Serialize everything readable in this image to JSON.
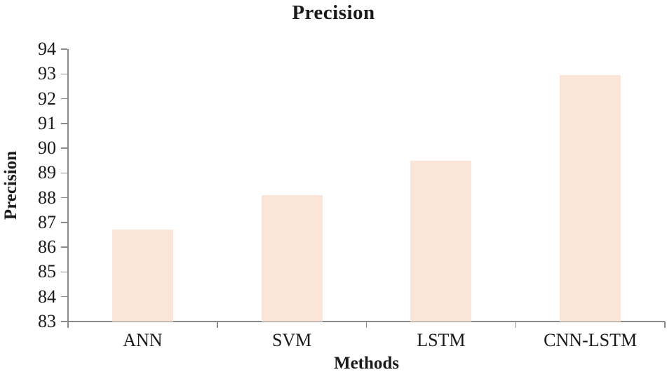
{
  "colors": {
    "bar_fill": "#FAE5D8",
    "axis": "#8A8A8A",
    "text": "#1A1A1A",
    "background": "#FFFFFF"
  },
  "chart_data": {
    "type": "bar",
    "title": "Precision",
    "xlabel": "Methods",
    "ylabel": "Precision",
    "categories": [
      "ANN",
      "SVM",
      "LSTM",
      "CNN-LSTM"
    ],
    "values": [
      86.7,
      88.1,
      89.5,
      92.95
    ],
    "ylim": [
      83,
      94
    ],
    "yticks": [
      83,
      84,
      85,
      86,
      87,
      88,
      89,
      90,
      91,
      92,
      93,
      94
    ],
    "grid": false,
    "legend_position": "none",
    "bar_color": "#FAE5D8"
  }
}
